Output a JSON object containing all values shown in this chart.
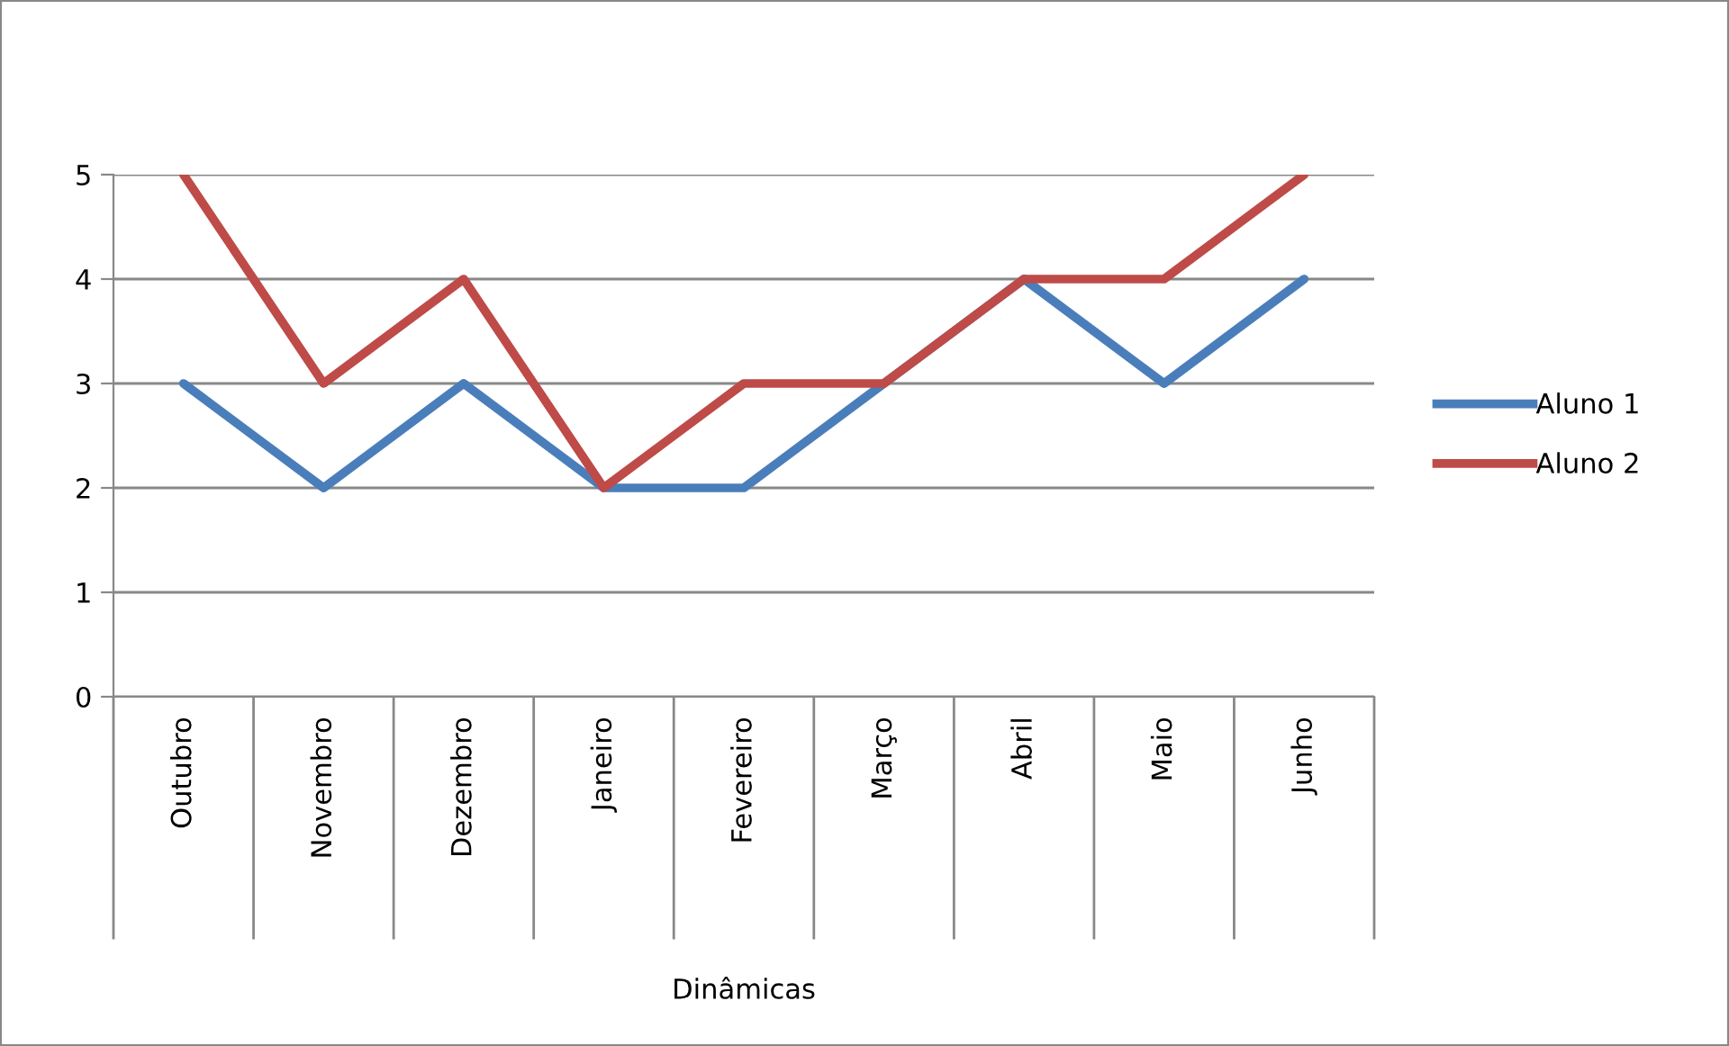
{
  "chart_data": {
    "type": "line",
    "xlabel": "Dinâmicas",
    "categories": [
      "Outubro",
      "Novembro",
      "Dezembro",
      "Janeiro",
      "Fevereiro",
      "Março",
      "Abril",
      "Maio",
      "Junho"
    ],
    "series": [
      {
        "name": "Aluno 1",
        "color": "#4a7ebb",
        "values": [
          3,
          2,
          3,
          2,
          2,
          3,
          4,
          3,
          4
        ]
      },
      {
        "name": "Aluno 2",
        "color": "#be4b48",
        "values": [
          5,
          3,
          4,
          2,
          3,
          3,
          4,
          4,
          5
        ]
      }
    ],
    "ylim": [
      0,
      5
    ],
    "yticks": [
      0,
      1,
      2,
      3,
      4,
      5
    ],
    "grid": "y",
    "legend": "right",
    "marker": "none",
    "line_style": "solid"
  }
}
